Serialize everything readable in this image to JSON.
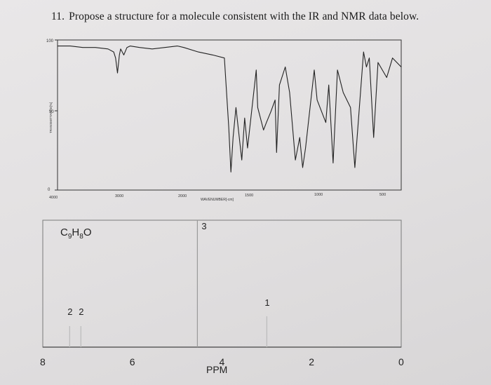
{
  "question": {
    "number": "11.",
    "text": "Propose a structure for a molecule consistent with the IR and NMR data below."
  },
  "ir_spectrum": {
    "y_axis_ticks": [
      "100",
      "50",
      "0"
    ],
    "y_axis_label": "TRANSMITTANCE[%]",
    "x_axis_ticks": [
      "4000",
      "3000",
      "2000",
      "1500",
      "1000",
      "500"
    ],
    "x_axis_label": "WAVENUMBER[-cm]"
  },
  "nmr_spectrum": {
    "formula": "C₉H₈O",
    "x_axis_ticks": [
      "8",
      "6",
      "4",
      "2",
      "0"
    ],
    "x_axis_label": "PPM",
    "integrations": [
      "2",
      "2",
      "3",
      "1"
    ]
  },
  "chart_data": [
    {
      "type": "line",
      "title": "",
      "xlabel": "WAVENUMBER[-cm]",
      "ylabel": "TRANSMITTANCE[%]",
      "xlim": [
        4000,
        500
      ],
      "ylim": [
        0,
        100
      ],
      "series": [
        {
          "x": [
            4000,
            3800,
            3600,
            3400,
            3200,
            3110,
            3080,
            3050,
            3020,
            3000,
            2950,
            2900,
            2850,
            2700,
            2500,
            2300,
            2100,
            2000,
            1900,
            1800,
            1720,
            1690,
            1675,
            1660,
            1640,
            1600,
            1580,
            1560,
            1500,
            1490,
            1450,
            1430,
            1400,
            1370,
            1360,
            1340,
            1300,
            1270,
            1230,
            1200,
            1180,
            1160,
            1100,
            1080,
            1020,
            1000,
            970,
            940,
            900,
            850,
            820,
            760,
            740,
            720,
            690,
            660,
            600,
            560,
            500
          ],
          "y": [
            96,
            96,
            95,
            95,
            94,
            92,
            88,
            78,
            90,
            94,
            90,
            95,
            96,
            95,
            94,
            95,
            96,
            95,
            92,
            90,
            88,
            42,
            12,
            35,
            55,
            20,
            48,
            28,
            80,
            55,
            40,
            45,
            52,
            60,
            25,
            70,
            82,
            65,
            20,
            35,
            15,
            28,
            80,
            60,
            45,
            70,
            18,
            80,
            65,
            55,
            15,
            92,
            82,
            88,
            35,
            85,
            75,
            88,
            82
          ]
        }
      ]
    },
    {
      "type": "bar",
      "title": "",
      "xlabel": "PPM",
      "ylabel": "",
      "xlim": [
        8,
        0
      ],
      "ylim": [
        0,
        3
      ],
      "series": [
        {
          "x": [
            7.4,
            7.15
          ],
          "values": [
            2,
            2
          ],
          "labels": [
            "2",
            "2"
          ]
        },
        {
          "x": [
            4.55
          ],
          "values": [
            3
          ],
          "labels": [
            "3"
          ]
        },
        {
          "x": [
            3.0
          ],
          "values": [
            1
          ],
          "labels": [
            "1"
          ]
        }
      ]
    }
  ]
}
